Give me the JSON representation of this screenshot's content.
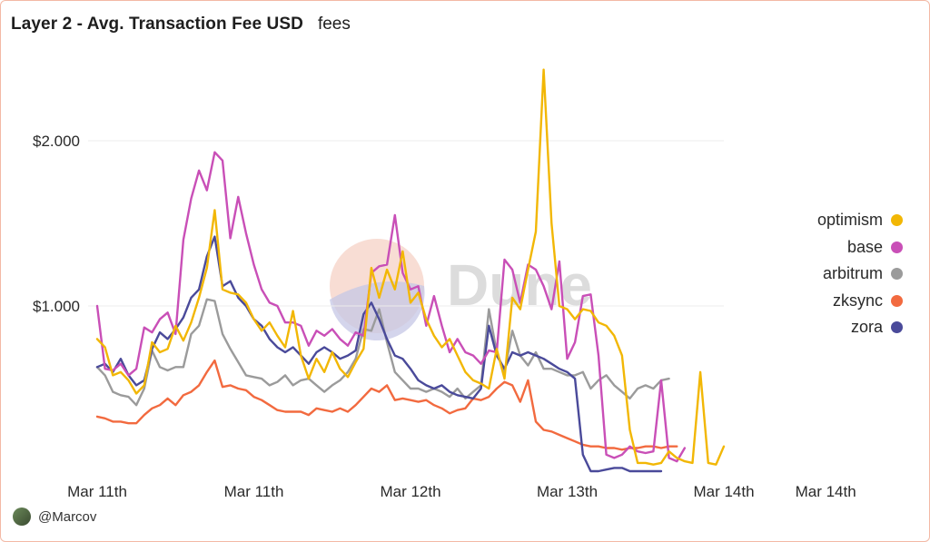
{
  "header": {
    "title": "Layer 2 - Avg. Transaction Fee USD",
    "subtitle": "fees"
  },
  "watermark": "Dune",
  "author": {
    "handle": "@Marcov"
  },
  "chart_data": {
    "type": "line",
    "ylim": [
      0,
      2.5
    ],
    "yticks": [
      {
        "value": 1.0,
        "label": "$1.000"
      },
      {
        "value": 2.0,
        "label": "$2.000"
      }
    ],
    "xticks": [
      "Mar 11th",
      "Mar 11th",
      "Mar 12th",
      "Mar 13th",
      "Mar 14th",
      "Mar 14th"
    ],
    "xtick_index": [
      0,
      20,
      40,
      60,
      80,
      93
    ],
    "legend_position": "right",
    "grid": "horizontal",
    "series": [
      {
        "name": "optimism",
        "color": "#f2b705",
        "values": [
          0.8,
          0.75,
          0.58,
          0.6,
          0.55,
          0.47,
          0.52,
          0.78,
          0.72,
          0.74,
          0.88,
          0.79,
          0.9,
          1.05,
          1.23,
          1.58,
          1.1,
          1.08,
          1.07,
          1.02,
          0.92,
          0.85,
          0.9,
          0.82,
          0.75,
          0.97,
          0.7,
          0.56,
          0.68,
          0.6,
          0.72,
          0.62,
          0.57,
          0.66,
          0.74,
          1.23,
          1.05,
          1.22,
          1.1,
          1.33,
          1.02,
          1.08,
          0.92,
          0.82,
          0.75,
          0.8,
          0.7,
          0.6,
          0.55,
          0.53,
          0.5,
          0.74,
          0.56,
          1.05,
          0.98,
          1.22,
          1.45,
          2.43,
          1.5,
          1.0,
          0.98,
          0.92,
          0.98,
          0.97,
          0.9,
          0.88,
          0.82,
          0.7,
          0.25,
          0.05,
          0.05,
          0.04,
          0.05,
          0.12,
          0.08,
          0.06,
          0.05,
          0.6,
          0.05,
          0.04,
          0.15
        ]
      },
      {
        "name": "base",
        "color": "#c94fb7",
        "values": [
          1.0,
          0.62,
          0.61,
          0.65,
          0.58,
          0.62,
          0.87,
          0.84,
          0.92,
          0.96,
          0.83,
          1.4,
          1.65,
          1.82,
          1.7,
          1.93,
          1.88,
          1.41,
          1.66,
          1.44,
          1.25,
          1.1,
          1.02,
          1.0,
          0.9,
          0.9,
          0.88,
          0.76,
          0.85,
          0.82,
          0.86,
          0.8,
          0.76,
          0.84,
          0.82,
          1.2,
          1.24,
          1.25,
          1.55,
          1.2,
          1.1,
          1.12,
          0.88,
          1.06,
          0.88,
          0.72,
          0.8,
          0.72,
          0.7,
          0.65,
          0.73,
          0.72,
          1.28,
          1.22,
          1.02,
          1.25,
          1.22,
          1.12,
          0.98,
          1.27,
          0.68,
          0.78,
          1.06,
          1.07,
          0.7,
          0.1,
          0.08,
          0.1,
          0.15,
          0.12,
          0.11,
          0.12,
          0.55,
          0.08,
          0.06,
          0.14
        ]
      },
      {
        "name": "arbitrum",
        "color": "#9b9b9b",
        "values": [
          0.63,
          0.58,
          0.48,
          0.46,
          0.45,
          0.4,
          0.5,
          0.73,
          0.63,
          0.61,
          0.63,
          0.63,
          0.83,
          0.88,
          1.04,
          1.03,
          0.83,
          0.74,
          0.66,
          0.58,
          0.57,
          0.56,
          0.52,
          0.54,
          0.58,
          0.52,
          0.55,
          0.56,
          0.52,
          0.48,
          0.52,
          0.55,
          0.6,
          0.68,
          0.86,
          0.85,
          0.98,
          0.78,
          0.6,
          0.55,
          0.5,
          0.5,
          0.48,
          0.5,
          0.48,
          0.45,
          0.5,
          0.44,
          0.48,
          0.52,
          0.98,
          0.72,
          0.6,
          0.85,
          0.7,
          0.64,
          0.72,
          0.62,
          0.62,
          0.6,
          0.58,
          0.58,
          0.6,
          0.5,
          0.55,
          0.58,
          0.52,
          0.48,
          0.44,
          0.5,
          0.52,
          0.5,
          0.55,
          0.56
        ]
      },
      {
        "name": "zksync",
        "color": "#f26a3f",
        "values": [
          0.33,
          0.32,
          0.3,
          0.3,
          0.29,
          0.29,
          0.34,
          0.38,
          0.4,
          0.44,
          0.4,
          0.46,
          0.48,
          0.52,
          0.6,
          0.67,
          0.51,
          0.52,
          0.5,
          0.49,
          0.45,
          0.43,
          0.4,
          0.37,
          0.36,
          0.36,
          0.36,
          0.34,
          0.38,
          0.37,
          0.36,
          0.38,
          0.36,
          0.4,
          0.45,
          0.5,
          0.48,
          0.52,
          0.43,
          0.44,
          0.43,
          0.42,
          0.43,
          0.4,
          0.38,
          0.35,
          0.37,
          0.38,
          0.44,
          0.43,
          0.45,
          0.5,
          0.54,
          0.52,
          0.42,
          0.55,
          0.3,
          0.25,
          0.24,
          0.22,
          0.2,
          0.18,
          0.16,
          0.15,
          0.15,
          0.14,
          0.14,
          0.13,
          0.14,
          0.14,
          0.15,
          0.15,
          0.14,
          0.15,
          0.15
        ]
      },
      {
        "name": "zora",
        "color": "#4a4a9a",
        "values": [
          0.63,
          0.65,
          0.6,
          0.68,
          0.58,
          0.52,
          0.55,
          0.74,
          0.84,
          0.8,
          0.86,
          0.93,
          1.05,
          1.1,
          1.3,
          1.42,
          1.12,
          1.15,
          1.05,
          1.0,
          0.92,
          0.88,
          0.8,
          0.75,
          0.72,
          0.75,
          0.7,
          0.65,
          0.72,
          0.75,
          0.72,
          0.68,
          0.7,
          0.73,
          0.95,
          1.02,
          0.92,
          0.8,
          0.7,
          0.68,
          0.62,
          0.55,
          0.52,
          0.5,
          0.52,
          0.48,
          0.46,
          0.45,
          0.44,
          0.5,
          0.88,
          0.7,
          0.62,
          0.72,
          0.7,
          0.72,
          0.7,
          0.68,
          0.65,
          0.62,
          0.6,
          0.56,
          0.1,
          0.0,
          0.0,
          0.01,
          0.02,
          0.02,
          0.0,
          0.0,
          0.0,
          0.0,
          0.0
        ]
      }
    ]
  }
}
